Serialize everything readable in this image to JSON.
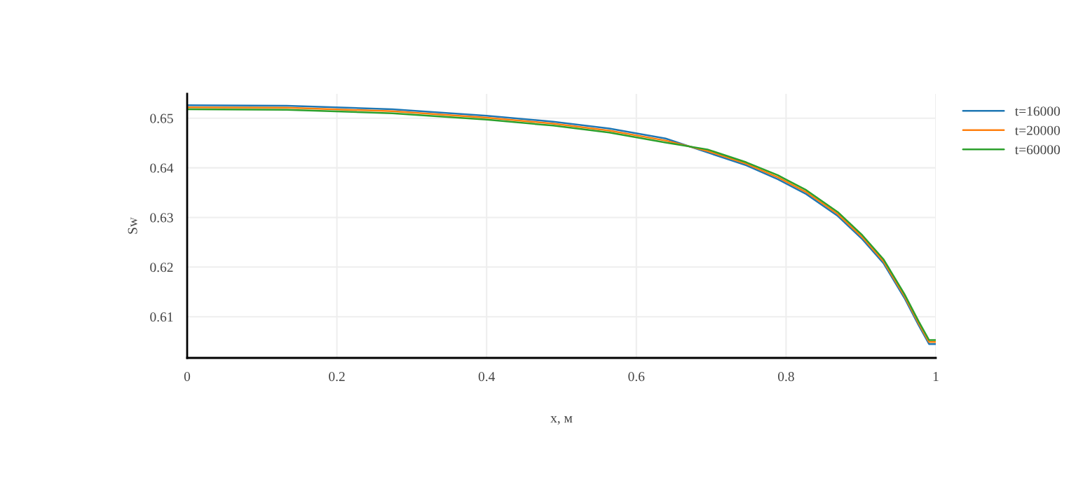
{
  "chart_data": {
    "type": "line",
    "xlabel": "x, м",
    "ylabel": "Sw",
    "x": [
      0,
      0.133,
      0.274,
      0.4,
      0.489,
      0.564,
      0.639,
      0.695,
      0.747,
      0.789,
      0.827,
      0.869,
      0.902,
      0.93,
      0.958,
      0.977,
      0.991,
      1
    ],
    "series": [
      {
        "name": "t=16000",
        "color": "#1f77b4",
        "values": [
          0.6526,
          0.6525,
          0.6518,
          0.6505,
          0.6493,
          0.6479,
          0.6459,
          0.6431,
          0.6405,
          0.6377,
          0.6347,
          0.6303,
          0.6256,
          0.6208,
          0.6138,
          0.6083,
          0.6045,
          0.6045
        ]
      },
      {
        "name": "t=20000",
        "color": "#ff7f0e",
        "values": [
          0.6522,
          0.6521,
          0.6514,
          0.6501,
          0.6489,
          0.6475,
          0.6455,
          0.6434,
          0.6408,
          0.6381,
          0.6351,
          0.6307,
          0.626,
          0.6212,
          0.6142,
          0.6087,
          0.6049,
          0.6049
        ]
      },
      {
        "name": "t=60000",
        "color": "#2ca02c",
        "values": [
          0.6518,
          0.6517,
          0.651,
          0.6497,
          0.6485,
          0.6471,
          0.6451,
          0.6437,
          0.6411,
          0.6385,
          0.6355,
          0.6311,
          0.6264,
          0.6216,
          0.6146,
          0.6091,
          0.6053,
          0.6053
        ]
      }
    ],
    "xlim": [
      0,
      1
    ],
    "xticks": [
      0,
      0.2,
      0.4,
      0.6,
      0.8,
      1
    ],
    "ylim": [
      0.6017,
      0.6549
    ],
    "yticks": [
      0.61,
      0.62,
      0.63,
      0.64,
      0.65
    ],
    "grid": true,
    "legend": "top right",
    "marker": "none",
    "line_style": "solid"
  }
}
